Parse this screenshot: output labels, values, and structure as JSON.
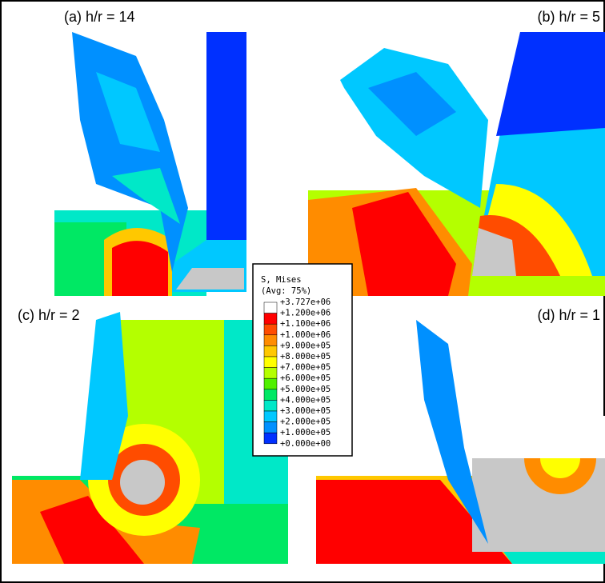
{
  "panels": [
    {
      "label": "(a) h/r = 14"
    },
    {
      "label": "(b) h/r = 5"
    },
    {
      "label": "(c) h/r = 2"
    },
    {
      "label": "(d) h/r = 1"
    }
  ],
  "legend": {
    "title": "S, Mises",
    "subtitle": "(Avg: 75%)",
    "labels": [
      "+3.727e+06",
      "+1.200e+06",
      "+1.100e+06",
      "+1.000e+06",
      "+9.000e+05",
      "+8.000e+05",
      "+7.000e+05",
      "+6.000e+05",
      "+5.000e+05",
      "+4.000e+05",
      "+3.000e+05",
      "+2.000e+05",
      "+1.000e+05",
      "+0.000e+00"
    ],
    "colors": [
      "#ffffff",
      "#ff0000",
      "#ff4c00",
      "#ff8c00",
      "#ffc800",
      "#ffff00",
      "#b4ff00",
      "#50f000",
      "#00e864",
      "#00e8c8",
      "#00c8ff",
      "#0090ff",
      "#0030ff"
    ]
  }
}
